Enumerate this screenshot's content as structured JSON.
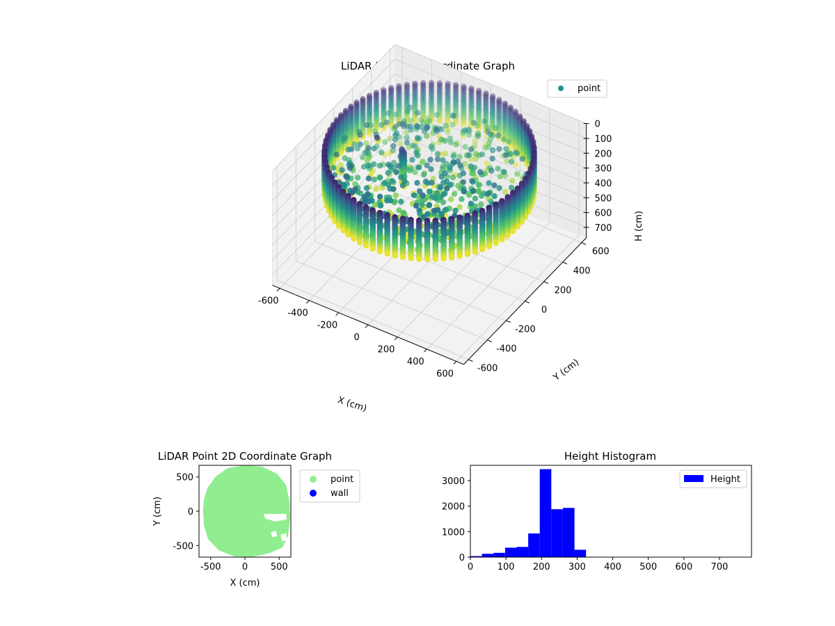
{
  "figure": {
    "background": "#ffffff"
  },
  "chart_data": [
    {
      "type": "scatter",
      "projection": "3d",
      "title": "LiDAR Point 3D Coordinate Graph",
      "xlabel": "X (cm)",
      "ylabel": "Y (cm)",
      "zlabel": "H (cm)",
      "xlim": [
        -650,
        650
      ],
      "ylim": [
        -650,
        650
      ],
      "zlim": [
        0,
        770
      ],
      "z_inverted": true,
      "xticks": [
        -600,
        -400,
        -200,
        0,
        200,
        400,
        600
      ],
      "yticks": [
        -600,
        -400,
        -200,
        0,
        200,
        400,
        600
      ],
      "zticks": [
        0,
        100,
        200,
        300,
        400,
        500,
        600,
        700
      ],
      "grid": true,
      "colormap": "viridis",
      "legend": {
        "placement": "top-right",
        "entries": [
          {
            "label": "point",
            "color": "#21918c"
          }
        ]
      },
      "series": [
        {
          "name": "point",
          "wall": {
            "radius": 600,
            "h_top": 30,
            "h_bottom": 290,
            "angle_step_deg": 4.5,
            "h_step": 13
          },
          "floor_radius": 560,
          "floor_h_range": [
            110,
            290
          ],
          "figure": {
            "x": -160,
            "y": -30,
            "h_top": 70,
            "h_bottom": 300
          },
          "scattered": [
            {
              "x": -330,
              "y": -40,
              "h": 45
            },
            {
              "x": -200,
              "y": -120,
              "h": 120
            },
            {
              "x": -100,
              "y": -260,
              "h": 150
            },
            {
              "x": 0,
              "y": -300,
              "h": 170
            },
            {
              "x": 140,
              "y": -320,
              "h": 180
            },
            {
              "x": 260,
              "y": -240,
              "h": 160
            },
            {
              "x": 330,
              "y": -330,
              "h": 210
            },
            {
              "x": -60,
              "y": -170,
              "h": 140
            },
            {
              "x": 60,
              "y": -220,
              "h": 200
            },
            {
              "x": -160,
              "y": -380,
              "h": 250
            },
            {
              "x": 200,
              "y": -410,
              "h": 230
            },
            {
              "x": 380,
              "y": -200,
              "h": 190
            }
          ]
        }
      ]
    },
    {
      "type": "scatter",
      "title": "LiDAR Point 2D Coordinate Graph",
      "xlabel": "X (cm)",
      "ylabel": "Y (cm)",
      "xlim": [
        -670,
        670
      ],
      "ylim": [
        -670,
        670
      ],
      "xticks": [
        -500,
        0,
        500
      ],
      "yticks": [
        -500,
        0,
        500
      ],
      "legend": {
        "placement": "outside-right",
        "entries": [
          {
            "label": "point",
            "color": "#90ee90"
          },
          {
            "label": "wall",
            "color": "#0000ff"
          }
        ]
      },
      "series": [
        {
          "name": "point",
          "color": "#90ee90",
          "boundary": [
            [
              -600,
              0
            ],
            [
              -590,
              160
            ],
            [
              -540,
              330
            ],
            [
              -420,
              500
            ],
            [
              -250,
              620
            ],
            [
              0,
              660
            ],
            [
              250,
              640
            ],
            [
              460,
              540
            ],
            [
              590,
              380
            ],
            [
              640,
              150
            ],
            [
              650,
              -100
            ],
            [
              620,
              -350
            ],
            [
              540,
              -520
            ],
            [
              360,
              -600
            ],
            [
              100,
              -660
            ],
            [
              -150,
              -650
            ],
            [
              -380,
              -560
            ],
            [
              -530,
              -400
            ],
            [
              -590,
              -200
            ]
          ],
          "gaps": [
            [
              [
                270,
                -40
              ],
              [
                600,
                -40
              ],
              [
                610,
                -120
              ],
              [
                450,
                -150
              ],
              [
                300,
                -110
              ]
            ],
            [
              [
                380,
                -310
              ],
              [
                450,
                -280
              ],
              [
                470,
                -360
              ],
              [
                400,
                -380
              ]
            ],
            [
              [
                520,
                -340
              ],
              [
                600,
                -320
              ],
              [
                610,
                -420
              ],
              [
                540,
                -440
              ]
            ]
          ]
        },
        {
          "name": "wall",
          "color": "#0000ff",
          "values": []
        }
      ]
    },
    {
      "type": "bar",
      "title": "Height Histogram",
      "xlabel": "",
      "ylabel": "",
      "xlim": [
        0,
        790
      ],
      "ylim": [
        0,
        3600
      ],
      "xticks": [
        0,
        100,
        200,
        300,
        400,
        500,
        600,
        700
      ],
      "yticks": [
        0,
        1000,
        2000,
        3000
      ],
      "legend": {
        "placement": "top-right",
        "entries": [
          {
            "label": "Height",
            "color": "#0000ff"
          }
        ]
      },
      "bar_color": "#0000ff",
      "bin_edges": [
        0,
        32.5,
        65,
        97.5,
        130,
        162.5,
        195,
        227.5,
        260,
        292.5,
        325
      ],
      "counts": [
        40,
        130,
        170,
        370,
        400,
        930,
        3450,
        1880,
        1930,
        290
      ]
    }
  ]
}
